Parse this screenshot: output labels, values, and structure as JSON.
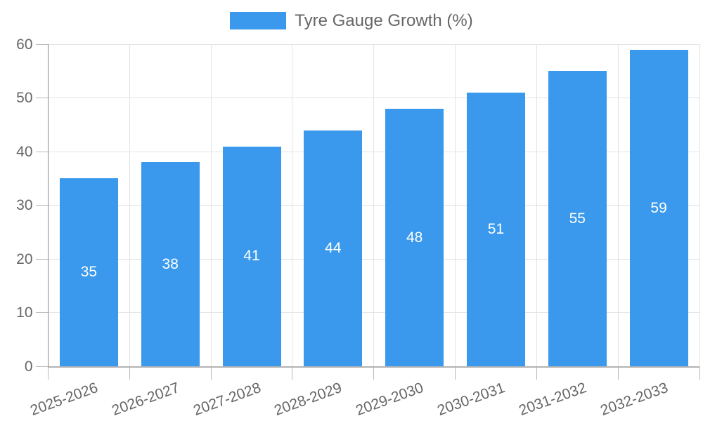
{
  "chart_data": {
    "type": "bar",
    "legend_label": "Tyre Gauge Growth (%)",
    "categories": [
      "2025-2026",
      "2026-2027",
      "2027-2028",
      "2028-2029",
      "2029-2030",
      "2030-2031",
      "2031-2032",
      "2032-2033"
    ],
    "values": [
      35,
      38,
      41,
      44,
      48,
      51,
      55,
      59
    ],
    "series": [
      {
        "name": "Tyre Gauge Growth (%)",
        "values": [
          35,
          38,
          41,
          44,
          48,
          51,
          55,
          59
        ]
      }
    ],
    "bar_value_labels": [
      "35",
      "38",
      "41",
      "44",
      "48",
      "51",
      "55",
      "59"
    ],
    "y_ticks": [
      0,
      10,
      20,
      30,
      40,
      50,
      60
    ],
    "ylim": [
      0,
      60
    ],
    "xlabel": "",
    "ylabel": "",
    "grid": true,
    "legend_position": "top",
    "x_tick_rotation_deg": -20
  },
  "colors": {
    "bar": "#3a99ec",
    "bar_label": "#ffffff",
    "tick_label": "#666666",
    "legend_text": "#666666",
    "gridline": "#e3e3e3",
    "y_axis_line": "#8a8a8a",
    "x_axis_line": "#b3b3b3",
    "tick_mark": "#b8b8b8",
    "background": "#ffffff"
  }
}
